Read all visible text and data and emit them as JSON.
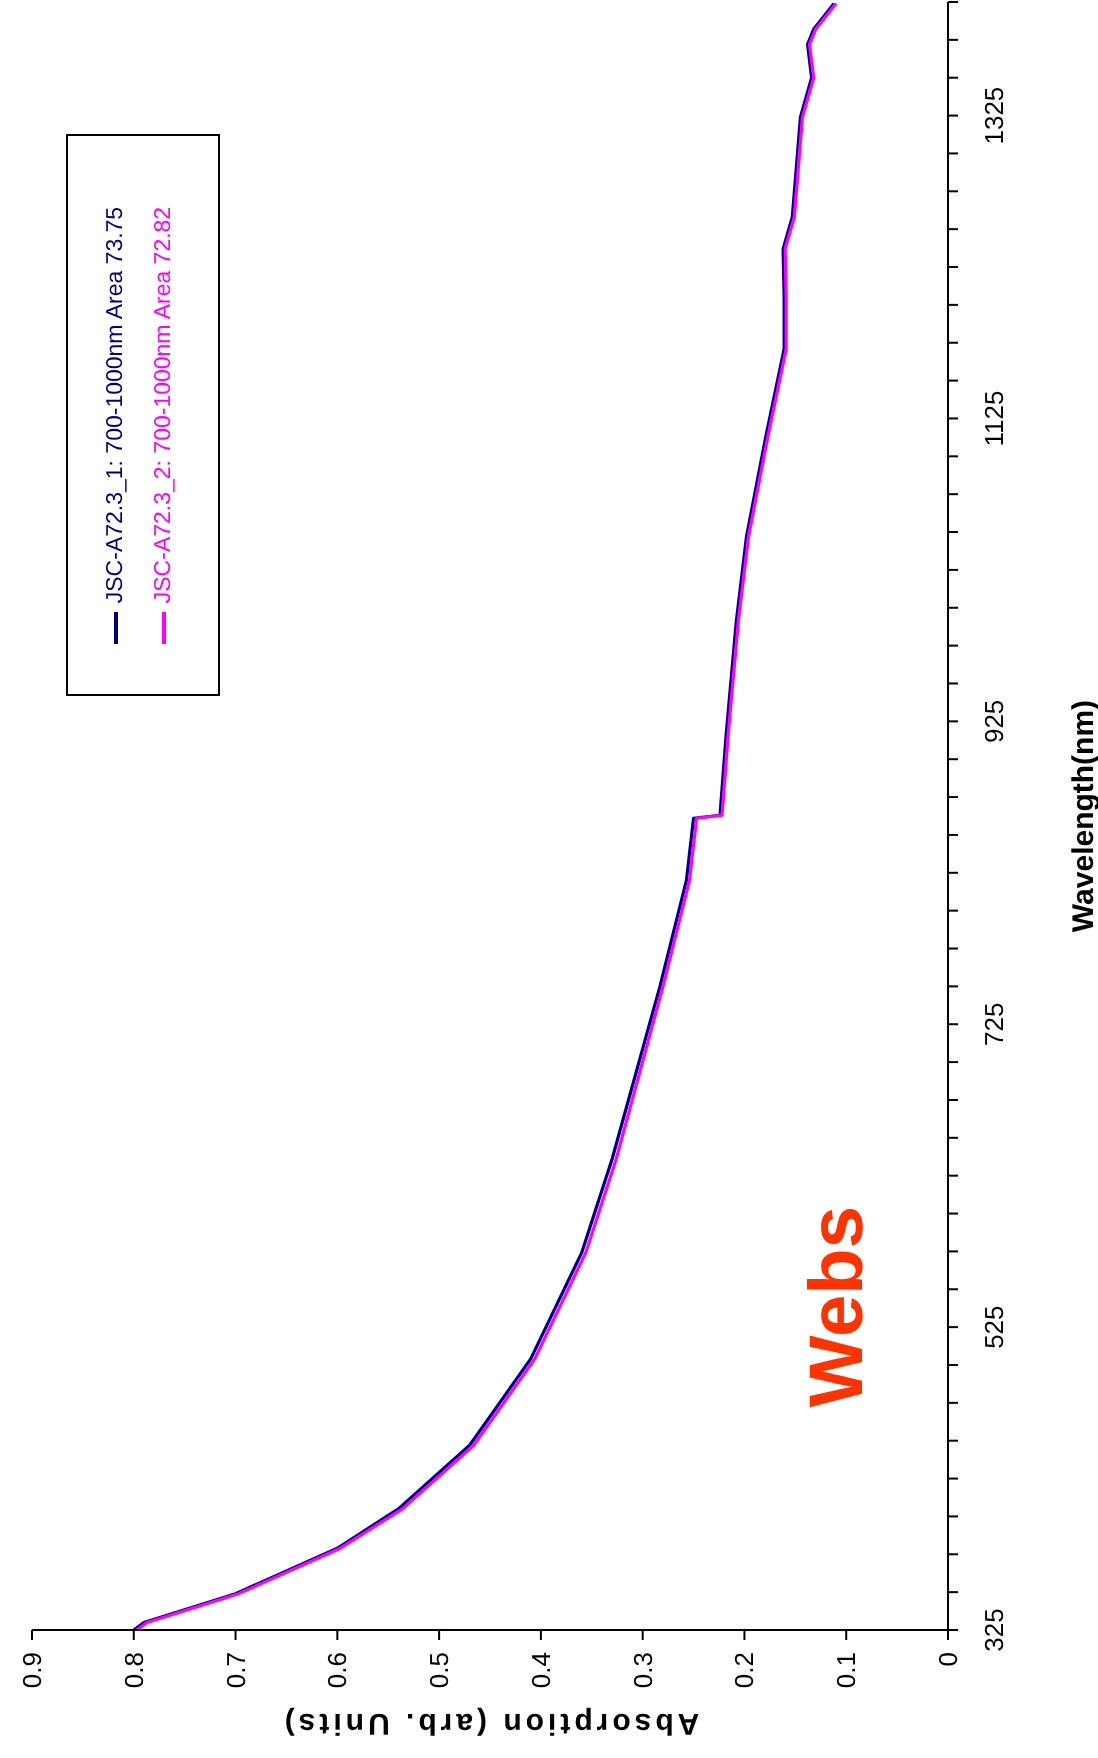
{
  "chart_data": {
    "type": "line",
    "xlabel": "Absorption (arb. Units)",
    "ylabel": "Wavelength(nm)",
    "annotations": [
      "Webs"
    ],
    "xlim": [
      0.9,
      0
    ],
    "xticks": [
      0.9,
      0.8,
      0.7,
      0.6,
      0.5,
      0.4,
      0.3,
      0.2,
      0.1,
      0
    ],
    "ylim": [
      325,
      1400
    ],
    "yticks": [
      325,
      {
        "value": 350,
        "label": null
      },
      {
        "value": 375,
        "label": null
      },
      {
        "value": 400,
        "label": null
      },
      {
        "value": 425,
        "label": null
      },
      {
        "value": 450,
        "label": null
      },
      {
        "value": 475,
        "label": null
      },
      {
        "value": 500,
        "label": null
      },
      525,
      {
        "value": 550,
        "label": null
      },
      {
        "value": 575,
        "label": null
      },
      {
        "value": 600,
        "label": null
      },
      {
        "value": 625,
        "label": null
      },
      {
        "value": 650,
        "label": null
      },
      {
        "value": 675,
        "label": null
      },
      {
        "value": 700,
        "label": null
      },
      725,
      {
        "value": 750,
        "label": null
      },
      {
        "value": 775,
        "label": null
      },
      {
        "value": 800,
        "label": null
      },
      {
        "value": 825,
        "label": null
      },
      {
        "value": 850,
        "label": null
      },
      {
        "value": 875,
        "label": null
      },
      {
        "value": 900,
        "label": null
      },
      925,
      {
        "value": 950,
        "label": null
      },
      {
        "value": 975,
        "label": null
      },
      {
        "value": 1000,
        "label": null
      },
      {
        "value": 1025,
        "label": null
      },
      {
        "value": 1050,
        "label": null
      },
      {
        "value": 1075,
        "label": null
      },
      {
        "value": 1100,
        "label": null
      },
      1125,
      {
        "value": 1150,
        "label": null
      },
      {
        "value": 1175,
        "label": null
      },
      {
        "value": 1200,
        "label": null
      },
      {
        "value": 1225,
        "label": null
      },
      {
        "value": 1250,
        "label": null
      },
      {
        "value": 1275,
        "label": null
      },
      {
        "value": 1300,
        "label": null
      },
      1325,
      {
        "value": 1350,
        "label": null
      },
      {
        "value": 1375,
        "label": null
      },
      {
        "value": 1400,
        "label": null
      }
    ],
    "series": [
      {
        "name": "JSC-A72.3_1: 700-1000nm Area 73.75",
        "color": "#000080",
        "x": [
          0.8,
          0.79,
          0.7,
          0.6,
          0.54,
          0.47,
          0.41,
          0.36,
          0.33,
          0.283,
          0.257,
          0.25,
          0.224,
          0.218,
          0.208,
          0.198,
          0.179,
          0.161,
          0.161,
          0.162,
          0.153,
          0.145,
          0.134,
          0.138,
          0.132,
          0.112
        ],
        "values": [
          325,
          330,
          349,
          379,
          405,
          447,
          504,
          574,
          636,
          750,
          820,
          861,
          863,
          916,
          991,
          1047,
          1113,
          1171,
          1205,
          1237,
          1258,
          1324,
          1350,
          1372,
          1382,
          1399
        ]
      },
      {
        "name": "JSC-A72.3_2: 700-1000nm Area 72.82",
        "color": "#ff00ff",
        "x": [
          0.797,
          0.787,
          0.697,
          0.597,
          0.536,
          0.466,
          0.406,
          0.356,
          0.326,
          0.28,
          0.254,
          0.247,
          0.222,
          0.216,
          0.206,
          0.196,
          0.177,
          0.159,
          0.159,
          0.16,
          0.151,
          0.143,
          0.132,
          0.136,
          0.13,
          0.11
        ],
        "values": [
          325,
          330,
          349,
          379,
          405,
          447,
          504,
          574,
          636,
          750,
          820,
          861,
          863,
          916,
          991,
          1047,
          1113,
          1171,
          1205,
          1237,
          1258,
          1324,
          1350,
          1372,
          1382,
          1399
        ]
      }
    ],
    "marker": "none",
    "grid": false,
    "legend": "top left"
  }
}
